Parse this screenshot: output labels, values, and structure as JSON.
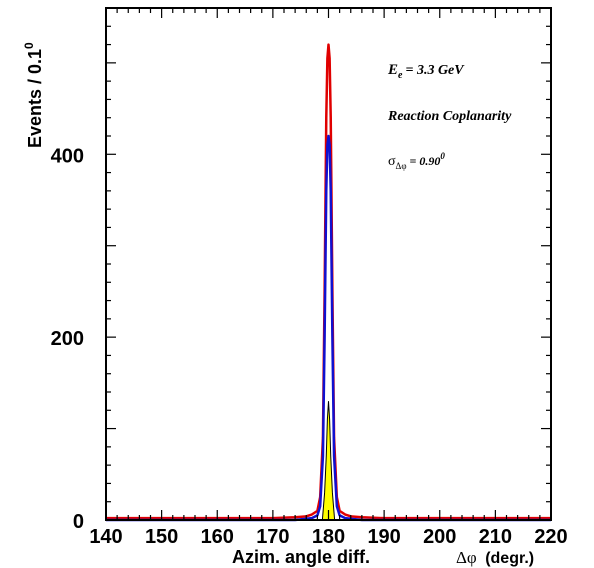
{
  "chart_data": {
    "type": "line",
    "xlim": [
      140,
      220
    ],
    "ylim": [
      0,
      560
    ],
    "x_ticks": [
      "140",
      "150",
      "160",
      "170",
      "180",
      "190",
      "200",
      "210",
      "220"
    ],
    "y_ticks": [
      "0",
      "200",
      "400"
    ],
    "ylabel": "Events / 0.1",
    "ylabel_sup": "0",
    "xlabel_left": "Azim. angle diff.",
    "xlabel_right_symbol": "Δφ",
    "xlabel_right_text": "(degr.)",
    "annotations": {
      "energy_symbol": "E",
      "energy_sub": "e",
      "energy_value": "= 3.3 GeV",
      "reaction": "Reaction Coplanarity",
      "sigma_symbol": "σ",
      "sigma_sub": "Δφ",
      "sigma_value": "= 0.90",
      "sigma_sup": "0"
    },
    "series": [
      {
        "color": "#e00000",
        "style": "line",
        "x": [
          140,
          170,
          174,
          176,
          177,
          178,
          178.5,
          179,
          179.3,
          179.6,
          179.8,
          180.0,
          180.2,
          180.4,
          180.7,
          181,
          181.5,
          182,
          183,
          184,
          186,
          190,
          220
        ],
        "y": [
          2,
          2,
          3,
          4,
          6,
          10,
          25,
          90,
          250,
          440,
          505,
          520,
          505,
          440,
          250,
          90,
          25,
          10,
          6,
          4,
          3,
          2,
          2
        ]
      },
      {
        "color": "#1010d0",
        "style": "line",
        "x": [
          140,
          174,
          177,
          178,
          178.5,
          179,
          179.3,
          179.6,
          179.8,
          180.0,
          180.2,
          180.4,
          180.7,
          181,
          181.5,
          182,
          183,
          186,
          220
        ],
        "y": [
          0,
          0,
          2,
          5,
          15,
          70,
          200,
          360,
          410,
          420,
          410,
          360,
          200,
          70,
          15,
          5,
          2,
          0,
          0
        ]
      },
      {
        "color": "#ffff00",
        "style": "fill",
        "x": [
          178.9,
          179.3,
          179.6,
          179.8,
          180.0,
          180.2,
          180.4,
          180.7,
          181.1
        ],
        "y": [
          0,
          30,
          70,
          110,
          130,
          110,
          70,
          30,
          0
        ]
      }
    ],
    "colors": {
      "fill_outline": "#000000",
      "axis": "#000000"
    }
  }
}
